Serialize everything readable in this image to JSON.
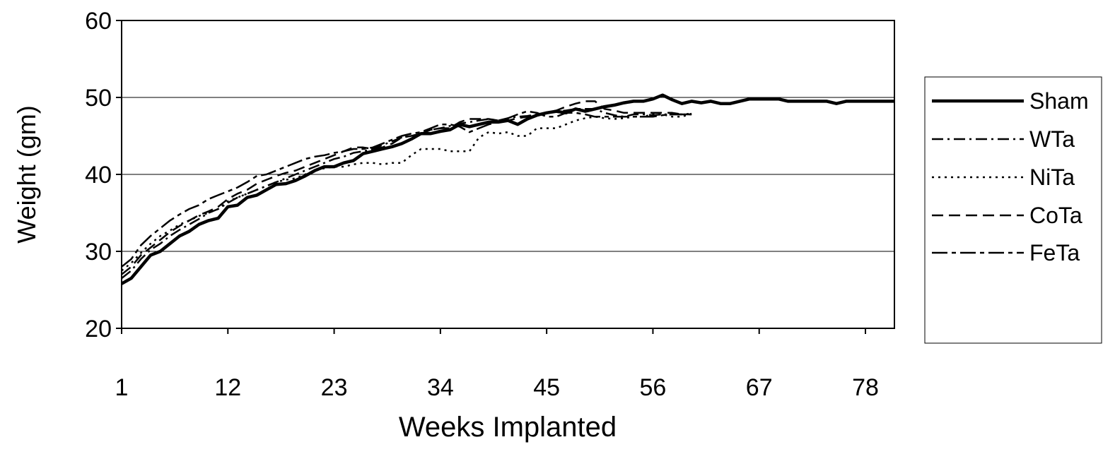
{
  "chart_data": {
    "type": "line",
    "xlabel": "Weeks Implanted",
    "ylabel": "Weight (gm)",
    "ylim": [
      20,
      60
    ],
    "yticks": [
      20,
      30,
      40,
      50,
      60
    ],
    "xlim": [
      1,
      81
    ],
    "xticks": [
      1,
      12,
      23,
      34,
      45,
      56,
      67,
      78
    ],
    "grid": "horizontal",
    "legend": "right",
    "series": [
      {
        "name": "Sham",
        "dash": "solid",
        "x": [
          1,
          2,
          3,
          4,
          5,
          6,
          7,
          8,
          9,
          10,
          11,
          12,
          13,
          14,
          15,
          16,
          17,
          18,
          19,
          20,
          21,
          22,
          23,
          24,
          25,
          26,
          27,
          28,
          29,
          30,
          31,
          32,
          33,
          34,
          35,
          36,
          37,
          38,
          39,
          40,
          41,
          42,
          43,
          44,
          45,
          46,
          47,
          48,
          49,
          50,
          51,
          52,
          53,
          54,
          55,
          56,
          57,
          58,
          59,
          60,
          61,
          62,
          63,
          64,
          65,
          66,
          67,
          68,
          69,
          70,
          71,
          72,
          73,
          74,
          75,
          76,
          77,
          78,
          79,
          80,
          81
        ],
        "values": [
          25.8,
          26.5,
          28.0,
          29.5,
          30.0,
          31.0,
          32.0,
          32.6,
          33.5,
          34.0,
          34.3,
          35.8,
          36.0,
          37.0,
          37.3,
          38.0,
          38.7,
          38.8,
          39.2,
          39.8,
          40.5,
          41.0,
          41.0,
          41.5,
          41.8,
          42.7,
          43.0,
          43.3,
          43.6,
          44.0,
          44.6,
          45.3,
          45.3,
          45.6,
          45.8,
          46.5,
          46.2,
          46.5,
          46.8,
          46.8,
          47.0,
          46.5,
          47.2,
          47.7,
          48.0,
          48.2,
          48.0,
          48.5,
          48.2,
          48.5,
          48.8,
          49.0,
          49.3,
          49.5,
          49.5,
          49.8,
          50.3,
          49.7,
          49.2,
          49.5,
          49.3,
          49.5,
          49.2,
          49.2,
          49.5,
          49.8,
          49.8,
          49.8,
          49.8,
          49.5,
          49.5,
          49.5,
          49.5,
          49.5,
          49.2,
          49.5,
          49.5,
          49.5,
          49.5,
          49.5,
          49.5
        ]
      },
      {
        "name": "WTa",
        "dash": "dash-dot",
        "x": [
          1,
          2,
          3,
          4,
          5,
          6,
          7,
          8,
          9,
          10,
          11,
          12,
          13,
          14,
          15,
          16,
          17,
          18,
          19,
          20,
          21,
          22,
          23,
          24,
          25,
          26,
          27,
          28,
          29,
          30,
          31,
          32,
          33,
          34,
          35,
          36,
          37,
          38,
          39,
          40,
          41,
          42,
          43,
          44,
          45,
          46,
          47,
          48,
          49,
          50,
          51,
          52,
          53,
          54,
          55,
          56,
          57,
          58,
          59,
          60
        ],
        "values": [
          26.5,
          27.5,
          29.0,
          30.2,
          31.0,
          32.0,
          32.8,
          33.5,
          34.2,
          35.0,
          35.5,
          36.3,
          37.0,
          37.5,
          38.0,
          38.5,
          39.0,
          39.5,
          40.0,
          40.5,
          41.0,
          41.5,
          42.0,
          42.3,
          42.8,
          43.0,
          43.3,
          43.8,
          44.3,
          44.8,
          45.0,
          45.3,
          45.8,
          46.0,
          46.3,
          46.6,
          46.8,
          47.0,
          47.2,
          47.0,
          47.3,
          47.5,
          47.6,
          47.8,
          48.0,
          48.2,
          48.3,
          48.5,
          48.5,
          48.5,
          48.0,
          47.7,
          47.5,
          47.8,
          47.8,
          47.7,
          47.8,
          47.8,
          47.8,
          47.9
        ]
      },
      {
        "name": "NiTa",
        "dash": "dotted",
        "x": [
          1,
          2,
          3,
          4,
          5,
          6,
          7,
          8,
          9,
          10,
          11,
          12,
          13,
          14,
          15,
          16,
          17,
          18,
          19,
          20,
          21,
          22,
          23,
          24,
          25,
          26,
          27,
          28,
          29,
          30,
          31,
          32,
          33,
          34,
          35,
          36,
          37,
          38,
          39,
          40,
          41,
          42,
          43,
          44,
          45,
          46,
          47,
          48,
          49,
          50,
          51,
          52,
          53,
          54,
          55,
          56,
          57,
          58,
          59,
          60
        ],
        "values": [
          27.5,
          28.5,
          29.8,
          31.0,
          32.0,
          32.7,
          33.5,
          34.0,
          34.6,
          35.0,
          35.5,
          36.5,
          37.0,
          37.5,
          38.0,
          38.5,
          39.0,
          39.3,
          39.5,
          40.0,
          40.5,
          40.8,
          41.0,
          41.0,
          41.3,
          41.5,
          41.5,
          41.3,
          41.5,
          41.5,
          42.5,
          43.3,
          43.3,
          43.3,
          43.0,
          43.0,
          43.0,
          44.8,
          45.5,
          45.3,
          45.5,
          45.0,
          45.0,
          46.0,
          46.0,
          46.0,
          46.5,
          47.0,
          47.3,
          47.5,
          47.3,
          47.2,
          47.3,
          47.5,
          47.5,
          47.8,
          47.8,
          47.5,
          47.5,
          47.9
        ]
      },
      {
        "name": "CoTa",
        "dash": "dashed",
        "x": [
          1,
          2,
          3,
          4,
          5,
          6,
          7,
          8,
          9,
          10,
          11,
          12,
          13,
          14,
          15,
          16,
          17,
          18,
          19,
          20,
          21,
          22,
          23,
          24,
          25,
          26,
          27,
          28,
          29,
          30,
          31,
          32,
          33,
          34,
          35,
          36,
          37,
          38,
          39,
          40,
          41,
          42,
          43,
          44,
          45,
          46,
          47,
          48,
          49,
          50,
          51,
          52,
          53,
          54,
          55,
          56,
          57,
          58,
          59,
          60
        ],
        "values": [
          27.0,
          28.0,
          29.5,
          30.5,
          31.5,
          32.5,
          33.3,
          34.0,
          34.7,
          35.2,
          35.8,
          36.8,
          37.5,
          38.0,
          38.8,
          39.3,
          39.8,
          40.2,
          40.5,
          41.0,
          41.5,
          42.0,
          42.5,
          43.0,
          43.5,
          43.5,
          43.3,
          43.5,
          44.0,
          44.8,
          45.0,
          45.3,
          45.8,
          46.0,
          46.0,
          46.8,
          47.2,
          47.2,
          47.2,
          47.0,
          47.0,
          47.3,
          47.5,
          47.8,
          48.0,
          48.3,
          48.8,
          49.2,
          49.5,
          49.5,
          48.5,
          48.3,
          48.0,
          48.0,
          48.0,
          48.0,
          48.0,
          48.0,
          47.8,
          47.8
        ]
      },
      {
        "name": "FeTa",
        "dash": "long-dash-dot",
        "x": [
          1,
          2,
          3,
          4,
          5,
          6,
          7,
          8,
          9,
          10,
          11,
          12,
          13,
          14,
          15,
          16,
          17,
          18,
          19,
          20,
          21,
          22,
          23,
          24,
          25,
          26,
          27,
          28,
          29,
          30,
          31,
          32,
          33,
          34,
          35,
          36,
          37,
          38,
          39,
          40,
          41,
          42,
          43,
          44,
          45,
          46,
          47,
          48,
          49,
          50,
          51,
          52,
          53,
          54,
          55,
          56,
          57,
          58,
          59,
          60
        ],
        "values": [
          28.0,
          29.0,
          30.8,
          32.0,
          33.0,
          34.0,
          34.8,
          35.5,
          36.0,
          36.8,
          37.3,
          37.8,
          38.3,
          39.0,
          39.8,
          40.0,
          40.5,
          41.0,
          41.5,
          42.0,
          42.3,
          42.5,
          42.8,
          43.0,
          43.3,
          43.3,
          43.5,
          44.0,
          44.5,
          45.0,
          45.3,
          45.5,
          46.0,
          46.5,
          46.5,
          46.2,
          45.5,
          46.0,
          46.5,
          46.8,
          47.3,
          47.8,
          48.2,
          48.0,
          47.5,
          47.5,
          48.0,
          48.0,
          47.8,
          47.5,
          47.5,
          47.5,
          47.5,
          47.5,
          47.5,
          47.5,
          47.7,
          47.8,
          47.8,
          47.8
        ]
      }
    ]
  }
}
